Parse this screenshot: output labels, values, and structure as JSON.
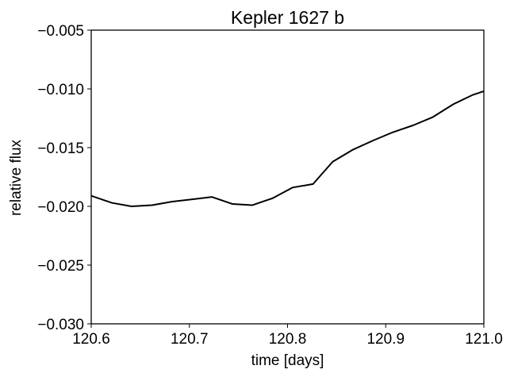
{
  "chart_data": {
    "type": "line",
    "title": "Kepler 1627 b",
    "xlabel": "time [days]",
    "ylabel": "relative flux",
    "xlim": [
      120.6,
      121.0
    ],
    "ylim": [
      -0.03,
      -0.005
    ],
    "x_ticks": [
      120.6,
      120.7,
      120.8,
      120.9,
      121.0
    ],
    "x_tick_labels": [
      "120.6",
      "120.7",
      "120.8",
      "120.9",
      "121.0"
    ],
    "y_ticks": [
      -0.005,
      -0.01,
      -0.015,
      -0.02,
      -0.025,
      -0.03
    ],
    "y_tick_labels": [
      "−0.005",
      "−0.010",
      "−0.015",
      "−0.020",
      "−0.025",
      "−0.030"
    ],
    "grid": false,
    "legend": "none",
    "line_color": "#000000",
    "series": [
      {
        "x": [
          120.6,
          120.621,
          120.641,
          120.662,
          120.682,
          120.703,
          120.723,
          120.744,
          120.764,
          120.785,
          120.805,
          120.826,
          120.846,
          120.866,
          120.887,
          120.907,
          120.928,
          120.948,
          120.969,
          120.989,
          121.0
        ],
        "y": [
          -0.0191,
          -0.0197,
          -0.02,
          -0.0199,
          -0.0196,
          -0.0194,
          -0.0192,
          -0.0198,
          -0.0199,
          -0.0193,
          -0.0184,
          -0.0181,
          -0.0162,
          -0.0152,
          -0.0144,
          -0.0137,
          -0.0131,
          -0.0124,
          -0.0113,
          -0.0105,
          -0.0102
        ]
      }
    ]
  }
}
